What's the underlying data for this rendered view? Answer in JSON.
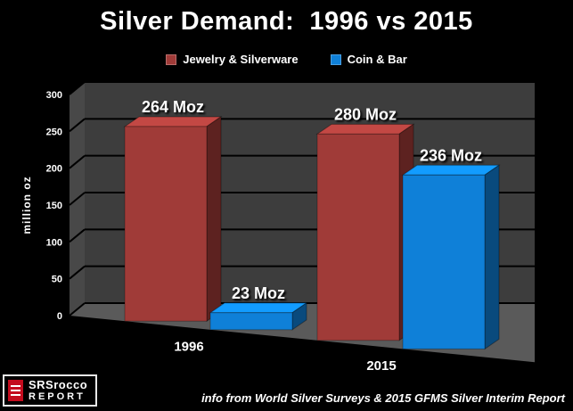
{
  "page": {
    "title": "Silver Demand:  1996 vs 2015",
    "background": "#000000",
    "footer_note": "info from World Silver Surveys & 2015 GFMS Silver Interim Report"
  },
  "logo": {
    "icon": "srsrocco-book-icon",
    "line1": "SRSrocco",
    "line2": "REPORT"
  },
  "chart_data": {
    "type": "bar",
    "projection": "3d",
    "title": "Silver Demand:  1996 vs 2015",
    "categories": [
      "1996",
      "2015"
    ],
    "series": [
      {
        "name": "Jewelry & Silverware",
        "color": "#A03B38",
        "values": [
          264,
          280
        ],
        "labels": [
          "264 Moz",
          "280 Moz"
        ]
      },
      {
        "name": "Coin & Bar",
        "color": "#0F80D8",
        "values": [
          23,
          236
        ],
        "labels": [
          "23 Moz",
          "236 Moz"
        ]
      }
    ],
    "ylabel": "million oz",
    "ylim": [
      0,
      300
    ],
    "yticks": [
      0,
      50,
      100,
      150,
      200,
      250,
      300
    ],
    "unit": "Moz",
    "legend_position": "top",
    "grid": true,
    "wall_color": "#3D3D3D",
    "side_wall_color": "#484848",
    "floor_color": "#5A5A5A",
    "gridline_color": "#000000",
    "text_color": "#FFFFFF"
  }
}
